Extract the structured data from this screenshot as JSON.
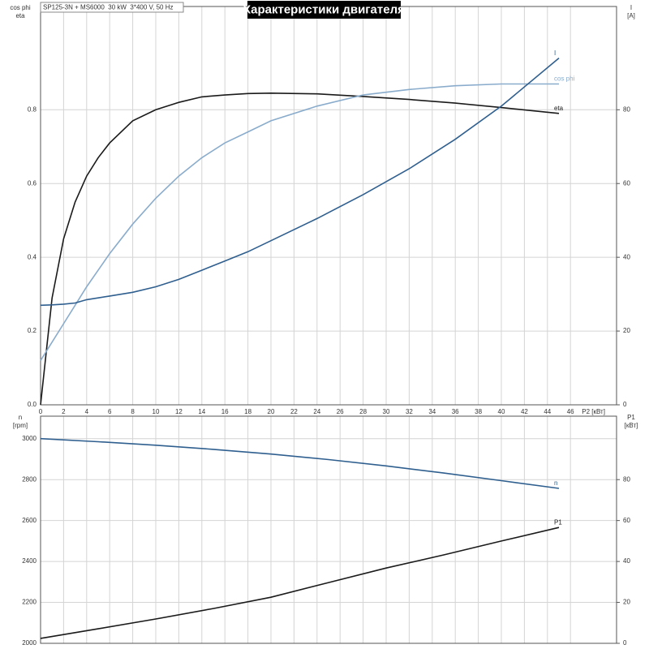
{
  "title": "Характеристики двигателя",
  "subtitle": "SP125-3N + MS6000  30 kW  3*400 V, 50 Hz",
  "chart_data": [
    {
      "type": "line",
      "xlabel": "P2 [кВт]",
      "ylabel": [
        "cos phi",
        "eta"
      ],
      "y2label": [
        "I",
        "[A]"
      ],
      "x": [
        0,
        1,
        2,
        3,
        4,
        5,
        6,
        8,
        10,
        12,
        14,
        16,
        18,
        20,
        24,
        28,
        32,
        36,
        40,
        45
      ],
      "xlim": [
        0,
        50
      ],
      "xticks": [
        0,
        2,
        4,
        6,
        8,
        10,
        12,
        14,
        16,
        18,
        20,
        22,
        24,
        26,
        28,
        30,
        32,
        34,
        36,
        38,
        40,
        42,
        44,
        46
      ],
      "ylim": [
        0,
        1.08
      ],
      "yticks": [
        {
          "value": 0,
          "label": "0.0"
        },
        0.2,
        0.4,
        0.6,
        0.8
      ],
      "y2lim": [
        0,
        108
      ],
      "y2ticks": [
        0,
        20,
        40,
        60,
        80
      ],
      "grid": true,
      "series": [
        {
          "name": "eta",
          "color": "#1a1a1a",
          "values": [
            0,
            0.29,
            0.45,
            0.55,
            0.62,
            0.67,
            0.71,
            0.77,
            0.8,
            0.82,
            0.835,
            0.84,
            0.844,
            0.845,
            0.843,
            0.836,
            0.828,
            0.818,
            0.806,
            0.79
          ]
        },
        {
          "name": "cos phi",
          "color": "#8aaccc",
          "values": [
            0.12,
            0.17,
            0.22,
            0.27,
            0.32,
            0.365,
            0.41,
            0.49,
            0.56,
            0.62,
            0.67,
            0.71,
            0.74,
            0.77,
            0.81,
            0.84,
            0.855,
            0.865,
            0.87,
            0.87
          ]
        },
        {
          "name": "I",
          "color": "#2f5f8f",
          "axis": "y2",
          "values": [
            27,
            27.1,
            27.3,
            27.6,
            28.5,
            29,
            29.5,
            30.5,
            32,
            34,
            36.5,
            39,
            41.5,
            44.5,
            50.5,
            57,
            64,
            72,
            81,
            94
          ]
        }
      ]
    },
    {
      "type": "line",
      "ylabel": [
        "n",
        "[rpm]"
      ],
      "y2label": [
        "P1",
        "[кВт]"
      ],
      "x": [
        0,
        5,
        10,
        15,
        20,
        25,
        30,
        35,
        40,
        45
      ],
      "xlim": [
        0,
        50
      ],
      "ylim": [
        2000,
        3110
      ],
      "yticks": [
        2000,
        2200,
        2400,
        2600,
        2800,
        3000
      ],
      "y2lim": [
        0,
        111
      ],
      "y2ticks": [
        0,
        20,
        40,
        60,
        80
      ],
      "grid": true,
      "series": [
        {
          "name": "n",
          "color": "#2f5f8f",
          "values": [
            3000,
            2985,
            2968,
            2948,
            2925,
            2898,
            2867,
            2832,
            2795,
            2757
          ]
        },
        {
          "name": "P1",
          "color": "#1a1a1a",
          "axis": "y2",
          "values": [
            2.4,
            7.1,
            11.9,
            17,
            22.5,
            29.7,
            36.8,
            43.2,
            50,
            56.6
          ]
        }
      ]
    }
  ]
}
